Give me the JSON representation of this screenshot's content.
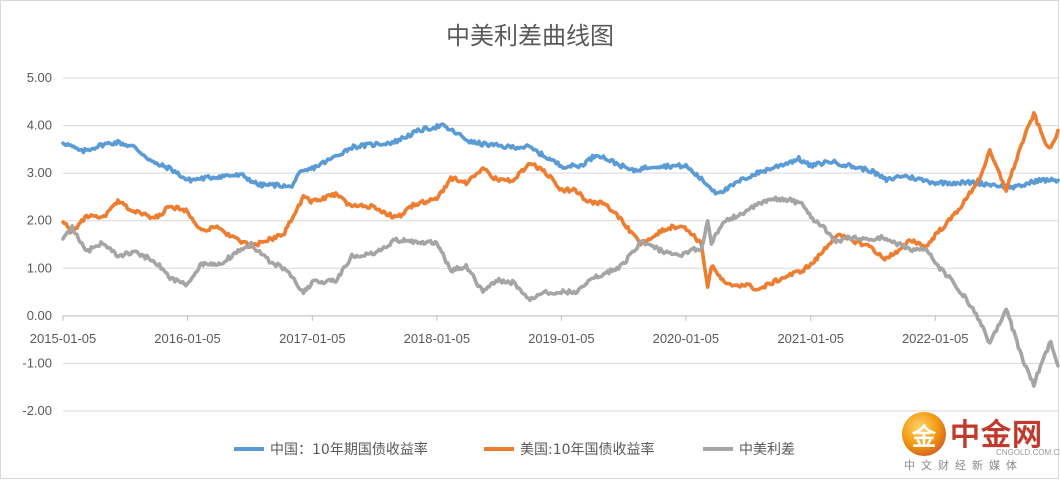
{
  "chart_data": {
    "type": "line",
    "title": "中美利差曲线图",
    "xlabel": "",
    "ylabel": "",
    "ylim": [
      -2.0,
      5.0
    ],
    "xlim": [
      "2015-01-05",
      "2022-12-31"
    ],
    "yticks": [
      "5.00",
      "4.00",
      "3.00",
      "2.00",
      "1.00",
      "0.00",
      "-1.00",
      "-2.00"
    ],
    "xticks": [
      "2015-01-05",
      "2016-01-05",
      "2017-01-05",
      "2018-01-05",
      "2019-01-05",
      "2020-01-05",
      "2021-01-05",
      "2022-01-05"
    ],
    "grid": "horizontal",
    "legend": "bottom",
    "series": [
      {
        "name": "中国：10年期国债收益率",
        "color": "#5b9bd5",
        "points": [
          [
            "2015-01-05",
            3.65
          ],
          [
            "2015-03-01",
            3.45
          ],
          [
            "2015-05-01",
            3.6
          ],
          [
            "2015-06-15",
            3.65
          ],
          [
            "2015-08-01",
            3.55
          ],
          [
            "2015-10-01",
            3.2
          ],
          [
            "2015-11-15",
            3.1
          ],
          [
            "2016-01-05",
            2.85
          ],
          [
            "2016-03-01",
            2.9
          ],
          [
            "2016-05-01",
            2.95
          ],
          [
            "2016-06-15",
            2.95
          ],
          [
            "2016-08-01",
            2.75
          ],
          [
            "2016-10-01",
            2.75
          ],
          [
            "2016-11-01",
            2.7
          ],
          [
            "2016-12-01",
            3.0
          ],
          [
            "2017-01-05",
            3.1
          ],
          [
            "2017-03-01",
            3.3
          ],
          [
            "2017-05-01",
            3.55
          ],
          [
            "2017-07-01",
            3.6
          ],
          [
            "2017-09-01",
            3.65
          ],
          [
            "2017-11-15",
            3.9
          ],
          [
            "2018-01-20",
            4.0
          ],
          [
            "2018-03-01",
            3.85
          ],
          [
            "2018-04-15",
            3.65
          ],
          [
            "2018-06-01",
            3.6
          ],
          [
            "2018-08-01",
            3.55
          ],
          [
            "2018-10-01",
            3.55
          ],
          [
            "2018-12-01",
            3.3
          ],
          [
            "2019-01-05",
            3.15
          ],
          [
            "2019-03-01",
            3.15
          ],
          [
            "2019-04-20",
            3.4
          ],
          [
            "2019-06-01",
            3.25
          ],
          [
            "2019-08-01",
            3.05
          ],
          [
            "2019-10-01",
            3.15
          ],
          [
            "2019-12-01",
            3.15
          ],
          [
            "2020-01-05",
            3.15
          ],
          [
            "2020-02-15",
            2.9
          ],
          [
            "2020-04-01",
            2.6
          ],
          [
            "2020-05-01",
            2.65
          ],
          [
            "2020-06-15",
            2.85
          ],
          [
            "2020-08-01",
            3.0
          ],
          [
            "2020-10-01",
            3.15
          ],
          [
            "2020-12-01",
            3.3
          ],
          [
            "2021-01-05",
            3.15
          ],
          [
            "2021-03-01",
            3.25
          ],
          [
            "2021-05-01",
            3.15
          ],
          [
            "2021-07-01",
            3.05
          ],
          [
            "2021-08-15",
            2.85
          ],
          [
            "2021-10-01",
            2.95
          ],
          [
            "2021-12-01",
            2.85
          ],
          [
            "2022-01-05",
            2.8
          ],
          [
            "2022-03-01",
            2.8
          ],
          [
            "2022-05-01",
            2.8
          ],
          [
            "2022-07-01",
            2.75
          ],
          [
            "2022-09-01",
            2.7
          ],
          [
            "2022-11-01",
            2.85
          ],
          [
            "2022-12-31",
            2.85
          ]
        ]
      },
      {
        "name": "美国:10年国债收益率",
        "color": "#ed7d31",
        "points": [
          [
            "2015-01-05",
            2.0
          ],
          [
            "2015-02-01",
            1.75
          ],
          [
            "2015-03-15",
            2.1
          ],
          [
            "2015-05-01",
            2.05
          ],
          [
            "2015-06-15",
            2.4
          ],
          [
            "2015-08-01",
            2.2
          ],
          [
            "2015-10-01",
            2.05
          ],
          [
            "2015-11-15",
            2.3
          ],
          [
            "2016-01-05",
            2.2
          ],
          [
            "2016-02-15",
            1.8
          ],
          [
            "2016-04-01",
            1.85
          ],
          [
            "2016-06-01",
            1.6
          ],
          [
            "2016-07-10",
            1.45
          ],
          [
            "2016-09-01",
            1.6
          ],
          [
            "2016-10-15",
            1.75
          ],
          [
            "2016-12-10",
            2.5
          ],
          [
            "2017-01-05",
            2.4
          ],
          [
            "2017-03-15",
            2.55
          ],
          [
            "2017-05-01",
            2.3
          ],
          [
            "2017-07-01",
            2.3
          ],
          [
            "2017-09-08",
            2.05
          ],
          [
            "2017-11-01",
            2.35
          ],
          [
            "2018-01-05",
            2.45
          ],
          [
            "2018-02-15",
            2.9
          ],
          [
            "2018-04-01",
            2.8
          ],
          [
            "2018-05-20",
            3.1
          ],
          [
            "2018-07-01",
            2.85
          ],
          [
            "2018-08-15",
            2.85
          ],
          [
            "2018-10-05",
            3.2
          ],
          [
            "2018-11-15",
            3.05
          ],
          [
            "2019-01-05",
            2.65
          ],
          [
            "2019-02-15",
            2.65
          ],
          [
            "2019-03-25",
            2.4
          ],
          [
            "2019-05-15",
            2.35
          ],
          [
            "2019-07-01",
            2.0
          ],
          [
            "2019-08-25",
            1.5
          ],
          [
            "2019-10-01",
            1.7
          ],
          [
            "2019-11-15",
            1.85
          ],
          [
            "2019-12-20",
            1.9
          ],
          [
            "2020-01-20",
            1.75
          ],
          [
            "2020-02-20",
            1.5
          ],
          [
            "2020-03-09",
            0.6
          ],
          [
            "2020-03-20",
            1.05
          ],
          [
            "2020-05-01",
            0.65
          ],
          [
            "2020-07-01",
            0.65
          ],
          [
            "2020-08-05",
            0.55
          ],
          [
            "2020-09-15",
            0.7
          ],
          [
            "2020-11-01",
            0.85
          ],
          [
            "2020-12-10",
            0.95
          ],
          [
            "2021-01-10",
            1.1
          ],
          [
            "2021-02-15",
            1.4
          ],
          [
            "2021-03-20",
            1.7
          ],
          [
            "2021-05-01",
            1.6
          ],
          [
            "2021-07-01",
            1.45
          ],
          [
            "2021-08-05",
            1.2
          ],
          [
            "2021-09-20",
            1.35
          ],
          [
            "2021-10-25",
            1.6
          ],
          [
            "2021-12-10",
            1.45
          ],
          [
            "2022-01-05",
            1.7
          ],
          [
            "2022-02-15",
            2.0
          ],
          [
            "2022-04-01",
            2.4
          ],
          [
            "2022-05-15",
            2.9
          ],
          [
            "2022-06-14",
            3.45
          ],
          [
            "2022-08-01",
            2.65
          ],
          [
            "2022-09-15",
            3.6
          ],
          [
            "2022-10-21",
            4.25
          ],
          [
            "2022-11-20",
            3.7
          ],
          [
            "2022-12-10",
            3.5
          ],
          [
            "2022-12-31",
            3.9
          ]
        ]
      },
      {
        "name": "中美利差",
        "color": "#a5a5a5",
        "points": [
          [
            "2015-01-05",
            1.65
          ],
          [
            "2015-02-01",
            1.85
          ],
          [
            "2015-03-15",
            1.35
          ],
          [
            "2015-05-01",
            1.55
          ],
          [
            "2015-06-15",
            1.25
          ],
          [
            "2015-08-01",
            1.35
          ],
          [
            "2015-10-01",
            1.15
          ],
          [
            "2015-11-15",
            0.8
          ],
          [
            "2016-01-05",
            0.65
          ],
          [
            "2016-02-15",
            1.1
          ],
          [
            "2016-04-01",
            1.05
          ],
          [
            "2016-06-01",
            1.35
          ],
          [
            "2016-07-10",
            1.5
          ],
          [
            "2016-09-01",
            1.15
          ],
          [
            "2016-10-15",
            1.0
          ],
          [
            "2016-12-10",
            0.5
          ],
          [
            "2017-01-05",
            0.7
          ],
          [
            "2017-03-15",
            0.75
          ],
          [
            "2017-05-01",
            1.25
          ],
          [
            "2017-07-01",
            1.3
          ],
          [
            "2017-09-08",
            1.6
          ],
          [
            "2017-11-01",
            1.55
          ],
          [
            "2018-01-05",
            1.55
          ],
          [
            "2018-02-15",
            0.95
          ],
          [
            "2018-04-01",
            1.05
          ],
          [
            "2018-05-20",
            0.5
          ],
          [
            "2018-07-01",
            0.75
          ],
          [
            "2018-08-15",
            0.7
          ],
          [
            "2018-10-05",
            0.35
          ],
          [
            "2018-11-15",
            0.5
          ],
          [
            "2019-01-05",
            0.5
          ],
          [
            "2019-02-15",
            0.5
          ],
          [
            "2019-03-25",
            0.75
          ],
          [
            "2019-05-15",
            0.9
          ],
          [
            "2019-07-01",
            1.05
          ],
          [
            "2019-08-25",
            1.55
          ],
          [
            "2019-10-01",
            1.45
          ],
          [
            "2019-11-15",
            1.3
          ],
          [
            "2019-12-20",
            1.25
          ],
          [
            "2020-01-20",
            1.4
          ],
          [
            "2020-02-20",
            1.4
          ],
          [
            "2020-03-09",
            2.0
          ],
          [
            "2020-03-20",
            1.55
          ],
          [
            "2020-05-01",
            2.0
          ],
          [
            "2020-07-01",
            2.2
          ],
          [
            "2020-08-05",
            2.35
          ],
          [
            "2020-09-15",
            2.45
          ],
          [
            "2020-11-01",
            2.45
          ],
          [
            "2020-12-10",
            2.35
          ],
          [
            "2021-01-10",
            2.05
          ],
          [
            "2021-02-15",
            1.85
          ],
          [
            "2021-03-20",
            1.55
          ],
          [
            "2021-05-01",
            1.65
          ],
          [
            "2021-07-01",
            1.6
          ],
          [
            "2021-08-05",
            1.65
          ],
          [
            "2021-09-20",
            1.5
          ],
          [
            "2021-10-25",
            1.4
          ],
          [
            "2021-12-10",
            1.4
          ],
          [
            "2022-01-05",
            1.1
          ],
          [
            "2022-02-15",
            0.8
          ],
          [
            "2022-04-01",
            0.4
          ],
          [
            "2022-05-15",
            -0.1
          ],
          [
            "2022-06-14",
            -0.6
          ],
          [
            "2022-08-01",
            0.15
          ],
          [
            "2022-09-15",
            -0.85
          ],
          [
            "2022-10-21",
            -1.45
          ],
          [
            "2022-11-20",
            -0.85
          ],
          [
            "2022-12-10",
            -0.55
          ],
          [
            "2022-12-31",
            -1.05
          ]
        ]
      }
    ]
  },
  "watermark": {
    "mark": "金",
    "main": "中金网",
    "domain": "CNGOLD.COM.CN",
    "sub": "中文财经新媒体"
  }
}
